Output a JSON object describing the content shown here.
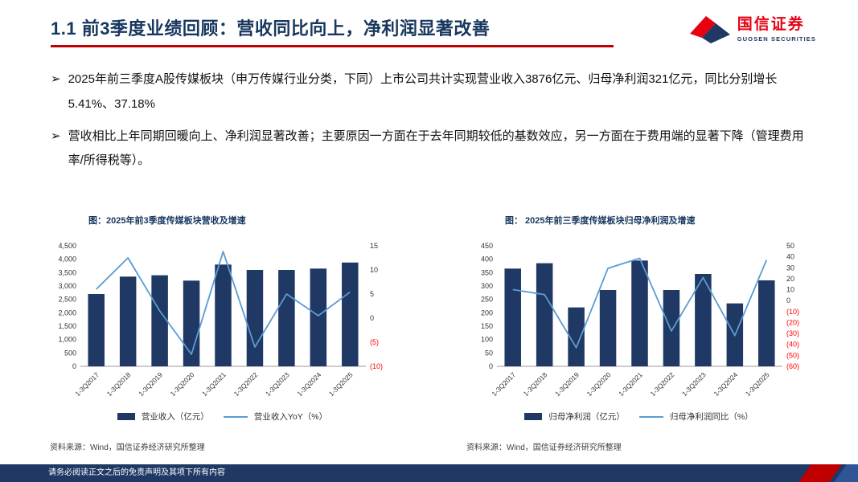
{
  "page": {
    "title": "1.1 前3季度业绩回顾：营收同比向上，净利润显著改善",
    "footer_disclaimer": "请务必阅读正文之后的免责声明及其项下所有内容"
  },
  "logo": {
    "name_cn": "国信证券",
    "name_en": "GUOSEN SECURITIES"
  },
  "bullets": [
    {
      "marker": "➢",
      "text": "2025年前三季度A股传媒板块（申万传媒行业分类，下同）上市公司共计实现营业收入3876亿元、归母净利润321亿元，同比分别增长5.41%、37.18%"
    },
    {
      "marker": "➢",
      "text": "营收相比上年同期回暖向上、净利润显著改善；主要原因一方面在于去年同期较低的基数效应，另一方面在于费用端的显著下降（管理费用率/所得税等）。"
    }
  ],
  "colors": {
    "navy": "#17375e",
    "bar": "#1f3864",
    "line": "#5b9bd5",
    "accent_red": "#c00000",
    "negative_red": "#ff0000",
    "axis_text": "#333333"
  },
  "chart_data": [
    {
      "type": "bar+line",
      "title": "图：2025年前3季度传媒板块营收及增速",
      "categories": [
        "1-3Q2017",
        "1-3Q2018",
        "1-3Q2019",
        "1-3Q2020",
        "1-3Q2021",
        "1-3Q2022",
        "1-3Q2023",
        "1-3Q2024",
        "1-3Q2025"
      ],
      "series": [
        {
          "name": "营业收入（亿元）",
          "type": "bar",
          "axis": "left",
          "values": [
            2700,
            3350,
            3400,
            3200,
            3800,
            3600,
            3600,
            3650,
            3876
          ]
        },
        {
          "name": "营业收入YoY（%）",
          "type": "line",
          "axis": "right",
          "values": [
            6,
            12.5,
            1.5,
            -7.5,
            13.8,
            -6,
            5,
            0.5,
            5.41
          ]
        }
      ],
      "left_axis": {
        "min": 0,
        "max": 4500,
        "step": 500,
        "ticks": [
          "4,500",
          "4,000",
          "3,500",
          "3,000",
          "2,500",
          "2,000",
          "1,500",
          "1,000",
          "500",
          "0"
        ]
      },
      "right_axis": {
        "min": -10,
        "max": 15,
        "step": 5,
        "ticks": [
          "15",
          "10",
          "5",
          "0",
          "(5)",
          "(10)"
        ]
      },
      "gridlines": false,
      "legend_position": "bottom",
      "source": "资料来源：Wind，国信证券经济研究所整理"
    },
    {
      "type": "bar+line",
      "title": "图： 2025年前三季度传媒板块归母净利润及增速",
      "categories": [
        "1-3Q2017",
        "1-3Q2018",
        "1-3Q2019",
        "1-3Q2020",
        "1-3Q2021",
        "1-3Q2022",
        "1-3Q2023",
        "1-3Q2024",
        "1-3Q2025"
      ],
      "series": [
        {
          "name": "归母净利润（亿元）",
          "type": "bar",
          "axis": "left",
          "values": [
            365,
            385,
            220,
            285,
            395,
            285,
            345,
            235,
            321
          ]
        },
        {
          "name": "归母净利润同比（%）",
          "type": "line",
          "axis": "right",
          "values": [
            10,
            5.5,
            -43,
            29.5,
            38.6,
            -27.8,
            21.1,
            -31.9,
            37.18
          ]
        }
      ],
      "left_axis": {
        "min": 0,
        "max": 450,
        "step": 50,
        "ticks": [
          "450",
          "400",
          "350",
          "300",
          "250",
          "200",
          "150",
          "100",
          "50",
          "0"
        ]
      },
      "right_axis": {
        "min": -60,
        "max": 50,
        "step": 10,
        "ticks": [
          "50",
          "40",
          "30",
          "20",
          "10",
          "0",
          "(10)",
          "(20)",
          "(30)",
          "(40)",
          "(50)",
          "(60)"
        ]
      },
      "gridlines": false,
      "legend_position": "bottom",
      "source": "资料来源：Wind，国信证券经济研究所整理"
    }
  ]
}
